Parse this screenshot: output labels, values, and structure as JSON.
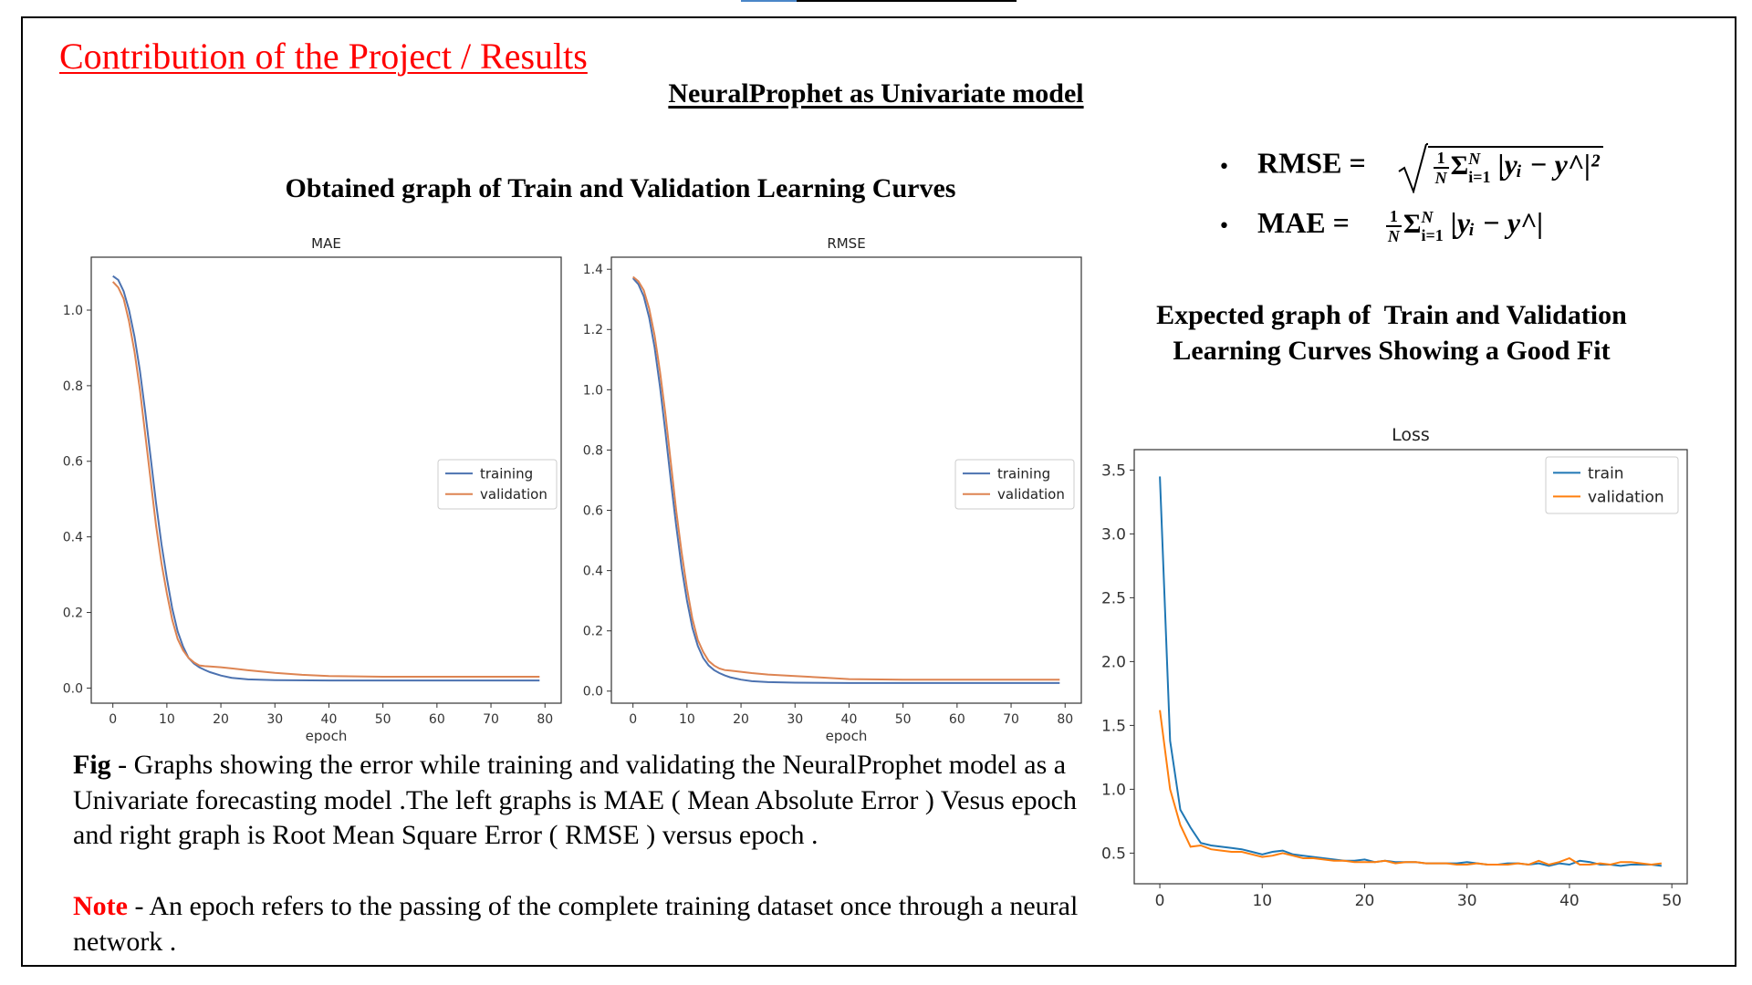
{
  "slide": {
    "main_title": "Contribution of the Project / Results",
    "sub_title": "NeuralProphet as Univariate model",
    "obtained_title": "Obtained graph of Train and Validation Learning Curves",
    "expected_title_line1": "Expected graph of  Train and Validation",
    "expected_title_line2": "Learning Curves Showing a Good Fit",
    "caption_lead": "Fig",
    "caption_text": " - Graphs showing the error while training and validating the NeuralProphet model as a Univariate forecasting model .The left graphs is MAE ( Mean Absolute Error ) Vesus epoch and right graph is Root Mean Square Error ( RMSE ) versus epoch .",
    "note_lead": "Note",
    "note_text": " - An epoch refers to the passing of the complete training dataset once through a neural network .",
    "accent_color": "#ff0000"
  },
  "formulas": {
    "rmse_label": "RMSE =",
    "mae_label": "MAE =",
    "frac_num": "1",
    "frac_den": "N",
    "sum_symbol": "Σ",
    "sum_upper": "N",
    "sum_lower": "i=1",
    "rmse_body": "|yᵢ − y^|²",
    "mae_body": "|yᵢ − y^|",
    "bullet": "•"
  },
  "chart_data": [
    {
      "id": "mae",
      "type": "line",
      "title": "MAE",
      "xlabel": "epoch",
      "ylabel": "",
      "xlim": [
        -4,
        83
      ],
      "ylim": [
        -0.04,
        1.14
      ],
      "xticks": [
        0,
        10,
        20,
        30,
        40,
        50,
        60,
        70,
        80
      ],
      "yticks": [
        0.0,
        0.2,
        0.4,
        0.6,
        0.8,
        1.0
      ],
      "ytick_labels": [
        "0.0",
        "0.2",
        "0.4",
        "0.6",
        "0.8",
        "1.0"
      ],
      "legend_position": "center-right",
      "grid": false,
      "series": [
        {
          "name": "training",
          "color": "#4c72b0",
          "x": [
            0,
            1,
            2,
            3,
            4,
            5,
            6,
            7,
            8,
            9,
            10,
            11,
            12,
            13,
            14,
            15,
            16,
            17,
            18,
            20,
            22,
            25,
            30,
            40,
            50,
            60,
            70,
            79
          ],
          "y": [
            1.09,
            1.08,
            1.05,
            1.0,
            0.93,
            0.84,
            0.73,
            0.61,
            0.49,
            0.38,
            0.29,
            0.21,
            0.15,
            0.11,
            0.08,
            0.065,
            0.055,
            0.048,
            0.042,
            0.033,
            0.027,
            0.023,
            0.021,
            0.02,
            0.02,
            0.02,
            0.02,
            0.02
          ]
        },
        {
          "name": "validation",
          "color": "#dd8452",
          "x": [
            0,
            1,
            2,
            3,
            4,
            5,
            6,
            7,
            8,
            9,
            10,
            11,
            12,
            13,
            14,
            15,
            16,
            17,
            18,
            20,
            22,
            25,
            30,
            35,
            40,
            50,
            60,
            70,
            79
          ],
          "y": [
            1.075,
            1.06,
            1.03,
            0.97,
            0.89,
            0.79,
            0.67,
            0.55,
            0.43,
            0.33,
            0.25,
            0.18,
            0.13,
            0.1,
            0.08,
            0.068,
            0.06,
            0.058,
            0.057,
            0.055,
            0.052,
            0.047,
            0.04,
            0.035,
            0.032,
            0.03,
            0.03,
            0.03,
            0.03
          ]
        }
      ]
    },
    {
      "id": "rmse",
      "type": "line",
      "title": "RMSE",
      "xlabel": "epoch",
      "ylabel": "",
      "xlim": [
        -4,
        83
      ],
      "ylim": [
        -0.04,
        1.44
      ],
      "xticks": [
        0,
        10,
        20,
        30,
        40,
        50,
        60,
        70,
        80
      ],
      "yticks": [
        0.0,
        0.2,
        0.4,
        0.6,
        0.8,
        1.0,
        1.2,
        1.4
      ],
      "ytick_labels": [
        "0.0",
        "0.2",
        "0.4",
        "0.6",
        "0.8",
        "1.0",
        "1.2",
        "1.4"
      ],
      "legend_position": "center-right",
      "grid": false,
      "series": [
        {
          "name": "training",
          "color": "#4c72b0",
          "x": [
            0,
            1,
            2,
            3,
            4,
            5,
            6,
            7,
            8,
            9,
            10,
            11,
            12,
            13,
            14,
            15,
            16,
            17,
            18,
            20,
            22,
            25,
            30,
            40,
            50,
            60,
            70,
            79
          ],
          "y": [
            1.37,
            1.35,
            1.31,
            1.24,
            1.14,
            1.01,
            0.86,
            0.7,
            0.55,
            0.41,
            0.3,
            0.21,
            0.15,
            0.11,
            0.085,
            0.07,
            0.06,
            0.052,
            0.046,
            0.038,
            0.033,
            0.03,
            0.028,
            0.027,
            0.027,
            0.027,
            0.027,
            0.027
          ]
        },
        {
          "name": "validation",
          "color": "#dd8452",
          "x": [
            0,
            1,
            2,
            3,
            4,
            5,
            6,
            7,
            8,
            9,
            10,
            11,
            12,
            13,
            14,
            15,
            16,
            17,
            18,
            20,
            22,
            25,
            30,
            35,
            40,
            50,
            60,
            70,
            79
          ],
          "y": [
            1.375,
            1.36,
            1.33,
            1.27,
            1.18,
            1.06,
            0.92,
            0.76,
            0.6,
            0.46,
            0.34,
            0.24,
            0.17,
            0.13,
            0.1,
            0.085,
            0.075,
            0.07,
            0.068,
            0.064,
            0.06,
            0.055,
            0.05,
            0.045,
            0.04,
            0.038,
            0.038,
            0.038,
            0.038
          ]
        }
      ]
    },
    {
      "id": "loss",
      "type": "line",
      "title": "Loss",
      "xlabel": "",
      "ylabel": "",
      "xlim": [
        -2.5,
        51.5
      ],
      "ylim": [
        0.26,
        3.66
      ],
      "xticks": [
        0,
        10,
        20,
        30,
        40,
        50
      ],
      "yticks": [
        0.5,
        1.0,
        1.5,
        2.0,
        2.5,
        3.0,
        3.5
      ],
      "ytick_labels": [
        "0.5",
        "1.0",
        "1.5",
        "2.0",
        "2.5",
        "3.0",
        "3.5"
      ],
      "legend_position": "top-right",
      "grid": false,
      "series": [
        {
          "name": "train",
          "color": "#1f77b4",
          "x": [
            0,
            1,
            2,
            3,
            4,
            5,
            6,
            7,
            8,
            9,
            10,
            11,
            12,
            13,
            14,
            15,
            16,
            17,
            18,
            19,
            20,
            21,
            22,
            23,
            24,
            25,
            26,
            27,
            28,
            29,
            30,
            31,
            32,
            33,
            34,
            35,
            36,
            37,
            38,
            39,
            40,
            41,
            42,
            43,
            44,
            45,
            46,
            47,
            48,
            49
          ],
          "y": [
            3.45,
            1.38,
            0.84,
            0.7,
            0.58,
            0.56,
            0.55,
            0.54,
            0.53,
            0.51,
            0.49,
            0.51,
            0.52,
            0.49,
            0.48,
            0.47,
            0.46,
            0.45,
            0.44,
            0.44,
            0.45,
            0.43,
            0.44,
            0.43,
            0.43,
            0.43,
            0.42,
            0.42,
            0.42,
            0.42,
            0.43,
            0.42,
            0.41,
            0.41,
            0.42,
            0.42,
            0.41,
            0.42,
            0.4,
            0.42,
            0.41,
            0.44,
            0.43,
            0.41,
            0.41,
            0.4,
            0.41,
            0.41,
            0.41,
            0.4
          ]
        },
        {
          "name": "validation",
          "color": "#ff7f0e",
          "x": [
            0,
            1,
            2,
            3,
            4,
            5,
            6,
            7,
            8,
            9,
            10,
            11,
            12,
            13,
            14,
            15,
            16,
            17,
            18,
            19,
            20,
            21,
            22,
            23,
            24,
            25,
            26,
            27,
            28,
            29,
            30,
            31,
            32,
            33,
            34,
            35,
            36,
            37,
            38,
            39,
            40,
            41,
            42,
            43,
            44,
            45,
            46,
            47,
            48,
            49
          ],
          "y": [
            1.62,
            1.0,
            0.72,
            0.55,
            0.56,
            0.53,
            0.52,
            0.51,
            0.51,
            0.49,
            0.47,
            0.48,
            0.5,
            0.48,
            0.46,
            0.46,
            0.45,
            0.44,
            0.44,
            0.43,
            0.43,
            0.43,
            0.44,
            0.42,
            0.43,
            0.43,
            0.42,
            0.42,
            0.42,
            0.41,
            0.41,
            0.42,
            0.41,
            0.41,
            0.41,
            0.42,
            0.41,
            0.44,
            0.41,
            0.43,
            0.46,
            0.41,
            0.41,
            0.42,
            0.41,
            0.43,
            0.43,
            0.42,
            0.41,
            0.42
          ]
        }
      ]
    }
  ]
}
